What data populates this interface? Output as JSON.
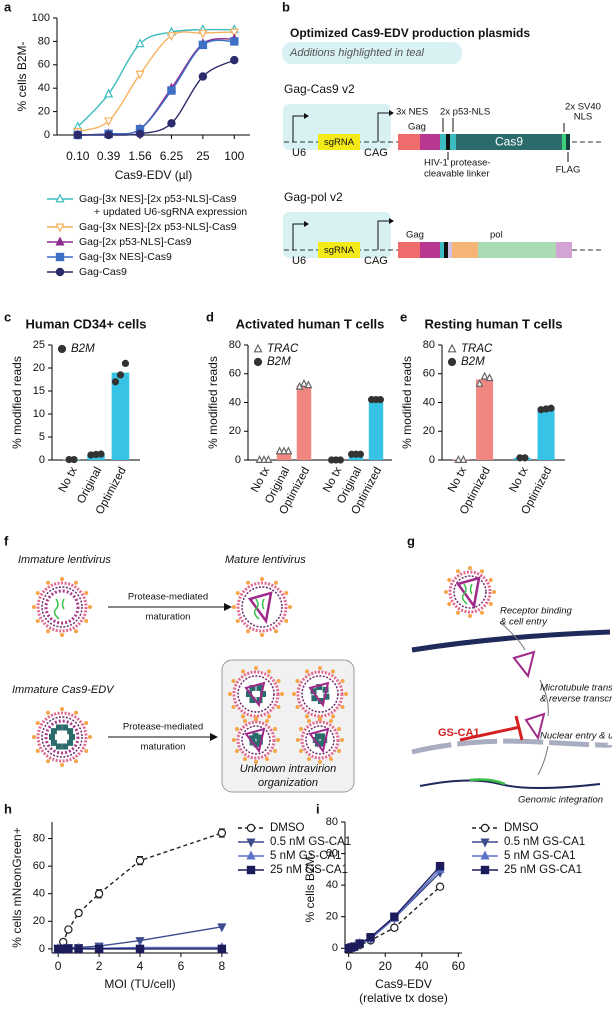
{
  "panel_labels": [
    "a",
    "b",
    "c",
    "d",
    "e",
    "f",
    "g",
    "h",
    "i"
  ],
  "chart_data": [
    {
      "type": "line",
      "curve": "smooth",
      "log_x": true,
      "legend": "below",
      "ylabel": "% cells B2M-",
      "xlabel": "Cas9-EDV (µl)",
      "x": [
        0.1,
        0.39,
        1.56,
        6.25,
        25,
        100
      ],
      "xlim": [
        0.04,
        200
      ],
      "xticks": [
        {
          "value": 0.1,
          "label": "0.10"
        },
        0.39,
        1.56,
        6.25,
        25,
        100
      ],
      "ylim": [
        0,
        100
      ],
      "yticks": [
        0,
        20,
        40,
        60,
        80,
        100
      ],
      "series": [
        {
          "name": "Gag-[3x NES]-[2x p53-NLS]-Cas9 + updated U6-sgRNA expression",
          "color": "#3bbcc0",
          "marker": "triangle",
          "filled": false,
          "values": [
            7,
            35,
            78,
            88,
            90,
            90
          ]
        },
        {
          "name": "Gag-[3x NES]-[2x p53-NLS]-Cas9",
          "color": "#f6b25e",
          "marker": "triangle-down",
          "filled": false,
          "values": [
            3,
            12,
            52,
            85,
            87,
            88
          ]
        },
        {
          "name": "Gag-[2x p53-NLS]-Cas9",
          "color": "#8e2c8e",
          "marker": "triangle",
          "filled": true,
          "values": [
            0,
            1,
            5,
            40,
            78,
            82
          ]
        },
        {
          "name": "Gag-[3x NES]-Cas9",
          "color": "#3d6fc4",
          "marker": "square",
          "filled": true,
          "values": [
            0,
            1,
            5,
            38,
            77,
            80
          ]
        },
        {
          "name": "Gag-Cas9",
          "color": "#2b2b6b",
          "marker": "circle",
          "filled": true,
          "values": [
            0,
            0,
            1,
            10,
            50,
            64
          ]
        }
      ]
    },
    {
      "type": "bar",
      "title": "Human CD34+ cells",
      "ylabel": "% modified reads",
      "legend": "top-left",
      "categories": [
        "No tx",
        "Original",
        "Optimized"
      ],
      "ylim": [
        0,
        25
      ],
      "yticks": [
        0,
        5,
        10,
        15,
        20,
        25
      ],
      "series": [
        {
          "name": "B2M",
          "color": "#36c3e6",
          "marker": "circle",
          "filled": true,
          "values": [
            0.1,
            1.2,
            19
          ],
          "replicates": [
            [
              0.1,
              0.1
            ],
            [
              1.1,
              1.2,
              1.3
            ],
            [
              17,
              18.5,
              21
            ]
          ]
        }
      ]
    },
    {
      "type": "bar",
      "title": "Activated human T cells",
      "ylabel": "% modified reads",
      "legend": "top-left",
      "categories": [
        "No tx",
        "Original",
        "Optimized"
      ],
      "ylim": [
        0,
        80
      ],
      "yticks": [
        0,
        20,
        40,
        60,
        80
      ],
      "series": [
        {
          "name": "TRAC",
          "color": "#f28782",
          "marker": "triangle",
          "filled": false,
          "values": [
            0.3,
            6,
            52
          ],
          "replicates": [
            [
              0,
              0,
              0
            ],
            [
              6,
              6,
              6
            ],
            [
              51,
              53,
              52
            ]
          ]
        },
        {
          "name": "B2M",
          "color": "#36c3e6",
          "marker": "circle",
          "filled": true,
          "values": [
            0.3,
            4,
            42
          ],
          "replicates": [
            [
              0,
              0,
              0
            ],
            [
              4,
              4,
              4
            ],
            [
              42,
              42,
              42
            ]
          ]
        }
      ]
    },
    {
      "type": "bar",
      "title": "Resting human T cells",
      "ylabel": "% modified reads",
      "legend": "top-left",
      "categories": [
        "No tx",
        "Optimized"
      ],
      "ylim": [
        0,
        80
      ],
      "yticks": [
        0,
        20,
        40,
        60,
        80
      ],
      "series": [
        {
          "name": "TRAC",
          "color": "#f28782",
          "marker": "triangle",
          "filled": false,
          "values": [
            0.3,
            56
          ],
          "replicates": [
            [
              0,
              0
            ],
            [
              53,
              58,
              57
            ]
          ]
        },
        {
          "name": "B2M",
          "color": "#36c3e6",
          "marker": "circle",
          "filled": true,
          "values": [
            1.5,
            35
          ],
          "replicates": [
            [
              1.5,
              1.5
            ],
            [
              35,
              35.5,
              36
            ]
          ]
        }
      ]
    },
    {
      "type": "line",
      "legend": "right",
      "ylabel": "% cells mNeonGreen+",
      "xlabel": "MOI (TU/cell)",
      "x": [
        0,
        0.25,
        0.5,
        1,
        2,
        4,
        8
      ],
      "xlim": [
        -0.3,
        8.3
      ],
      "xticks": [
        0,
        2,
        4,
        6,
        8
      ],
      "ylim": [
        -3,
        92
      ],
      "yticks": [
        0,
        20,
        40,
        60,
        80
      ],
      "series": [
        {
          "name": "DMSO",
          "color": "#222222",
          "marker": "circle",
          "filled": false,
          "dashed": true,
          "values": [
            0,
            5,
            14,
            26,
            40,
            64,
            84
          ],
          "errors": [
            0,
            1,
            1,
            2,
            3,
            3,
            3
          ]
        },
        {
          "name": "0.5 nM GS-CA1",
          "color": "#3d4c8c",
          "marker": "triangle-down",
          "filled": true,
          "values": [
            0,
            0,
            1,
            1,
            2,
            6,
            16
          ]
        },
        {
          "name": "5 nM GS-CA1",
          "color": "#5a72c8",
          "marker": "triangle",
          "filled": true,
          "values": [
            0,
            0,
            0,
            0.5,
            0.5,
            1,
            1
          ]
        },
        {
          "name": "25 nM GS-CA1",
          "color": "#1c1c5c",
          "marker": "square",
          "filled": true,
          "values": [
            0,
            0,
            0,
            0,
            0,
            0,
            0
          ]
        }
      ]
    },
    {
      "type": "line",
      "legend": "right",
      "ylabel": "% cells B2M-",
      "xlabel": [
        "Cas9-EDV",
        "(relative tx dose)"
      ],
      "x": [
        0,
        1.5,
        3,
        6,
        12,
        25,
        50
      ],
      "xlim": [
        -2,
        62
      ],
      "xticks": [
        0,
        20,
        40,
        60
      ],
      "ylim": [
        -3,
        80
      ],
      "yticks": [
        0,
        20,
        40,
        60,
        80
      ],
      "series": [
        {
          "name": "DMSO",
          "color": "#222222",
          "marker": "circle",
          "filled": false,
          "dashed": true,
          "values": [
            0,
            0.5,
            1,
            2,
            5,
            13,
            39
          ]
        },
        {
          "name": "0.5 nM GS-CA1",
          "color": "#3d4c8c",
          "marker": "triangle-down",
          "filled": true,
          "values": [
            0,
            0.5,
            1,
            3,
            6,
            19,
            48
          ]
        },
        {
          "name": "5 nM GS-CA1",
          "color": "#5a72c8",
          "marker": "triangle",
          "filled": true,
          "values": [
            0,
            0.5,
            1,
            3,
            6,
            19,
            50
          ]
        },
        {
          "name": "25 nM GS-CA1",
          "color": "#1c1c5c",
          "marker": "square",
          "filled": true,
          "values": [
            0,
            0.5,
            1,
            3,
            7,
            20,
            52
          ]
        }
      ]
    }
  ],
  "diagram_b": {
    "title": "Optimized Cas9-EDV production plasmids",
    "subtitle": "Additions highlighted in teal",
    "construct_1": {
      "name": "Gag-Cas9 v2",
      "u6": "U6",
      "sgrna": "sgRNA",
      "cag": "CAG",
      "gag": "Gag",
      "nes": "3x NES",
      "nls": "2x p53-NLS",
      "cas9": "Cas9",
      "sv40_nls": [
        "2x SV40",
        "NLS"
      ],
      "linker": [
        "HIV-1 protease-",
        "cleavable linker"
      ],
      "flag": "FLAG"
    },
    "construct_2": {
      "name": "Gag-pol v2",
      "u6": "U6",
      "sgrna": "sgRNA",
      "cag": "CAG",
      "gag": "Gag",
      "pol": "pol"
    }
  },
  "diagram_f": {
    "immature_lenti": "Immature lentivirus",
    "mature_lenti": "Mature lentivirus",
    "arrow_1": [
      "Protease-mediated",
      "maturation"
    ],
    "immature_edv": "Immature Cas9-EDV",
    "arrow_2": [
      "Protease-mediated",
      "maturation"
    ],
    "box_label": [
      "Unknown intravirion",
      "organization"
    ]
  },
  "diagram_g": {
    "step_1": [
      "Receptor binding",
      "& cell entry"
    ],
    "step_2": [
      "Microtubule transport",
      "& reverse transcription"
    ],
    "step_3": "Nuclear entry & uncoating",
    "step_4": "Genomic integration",
    "inhibitor": "GS-CA1"
  }
}
